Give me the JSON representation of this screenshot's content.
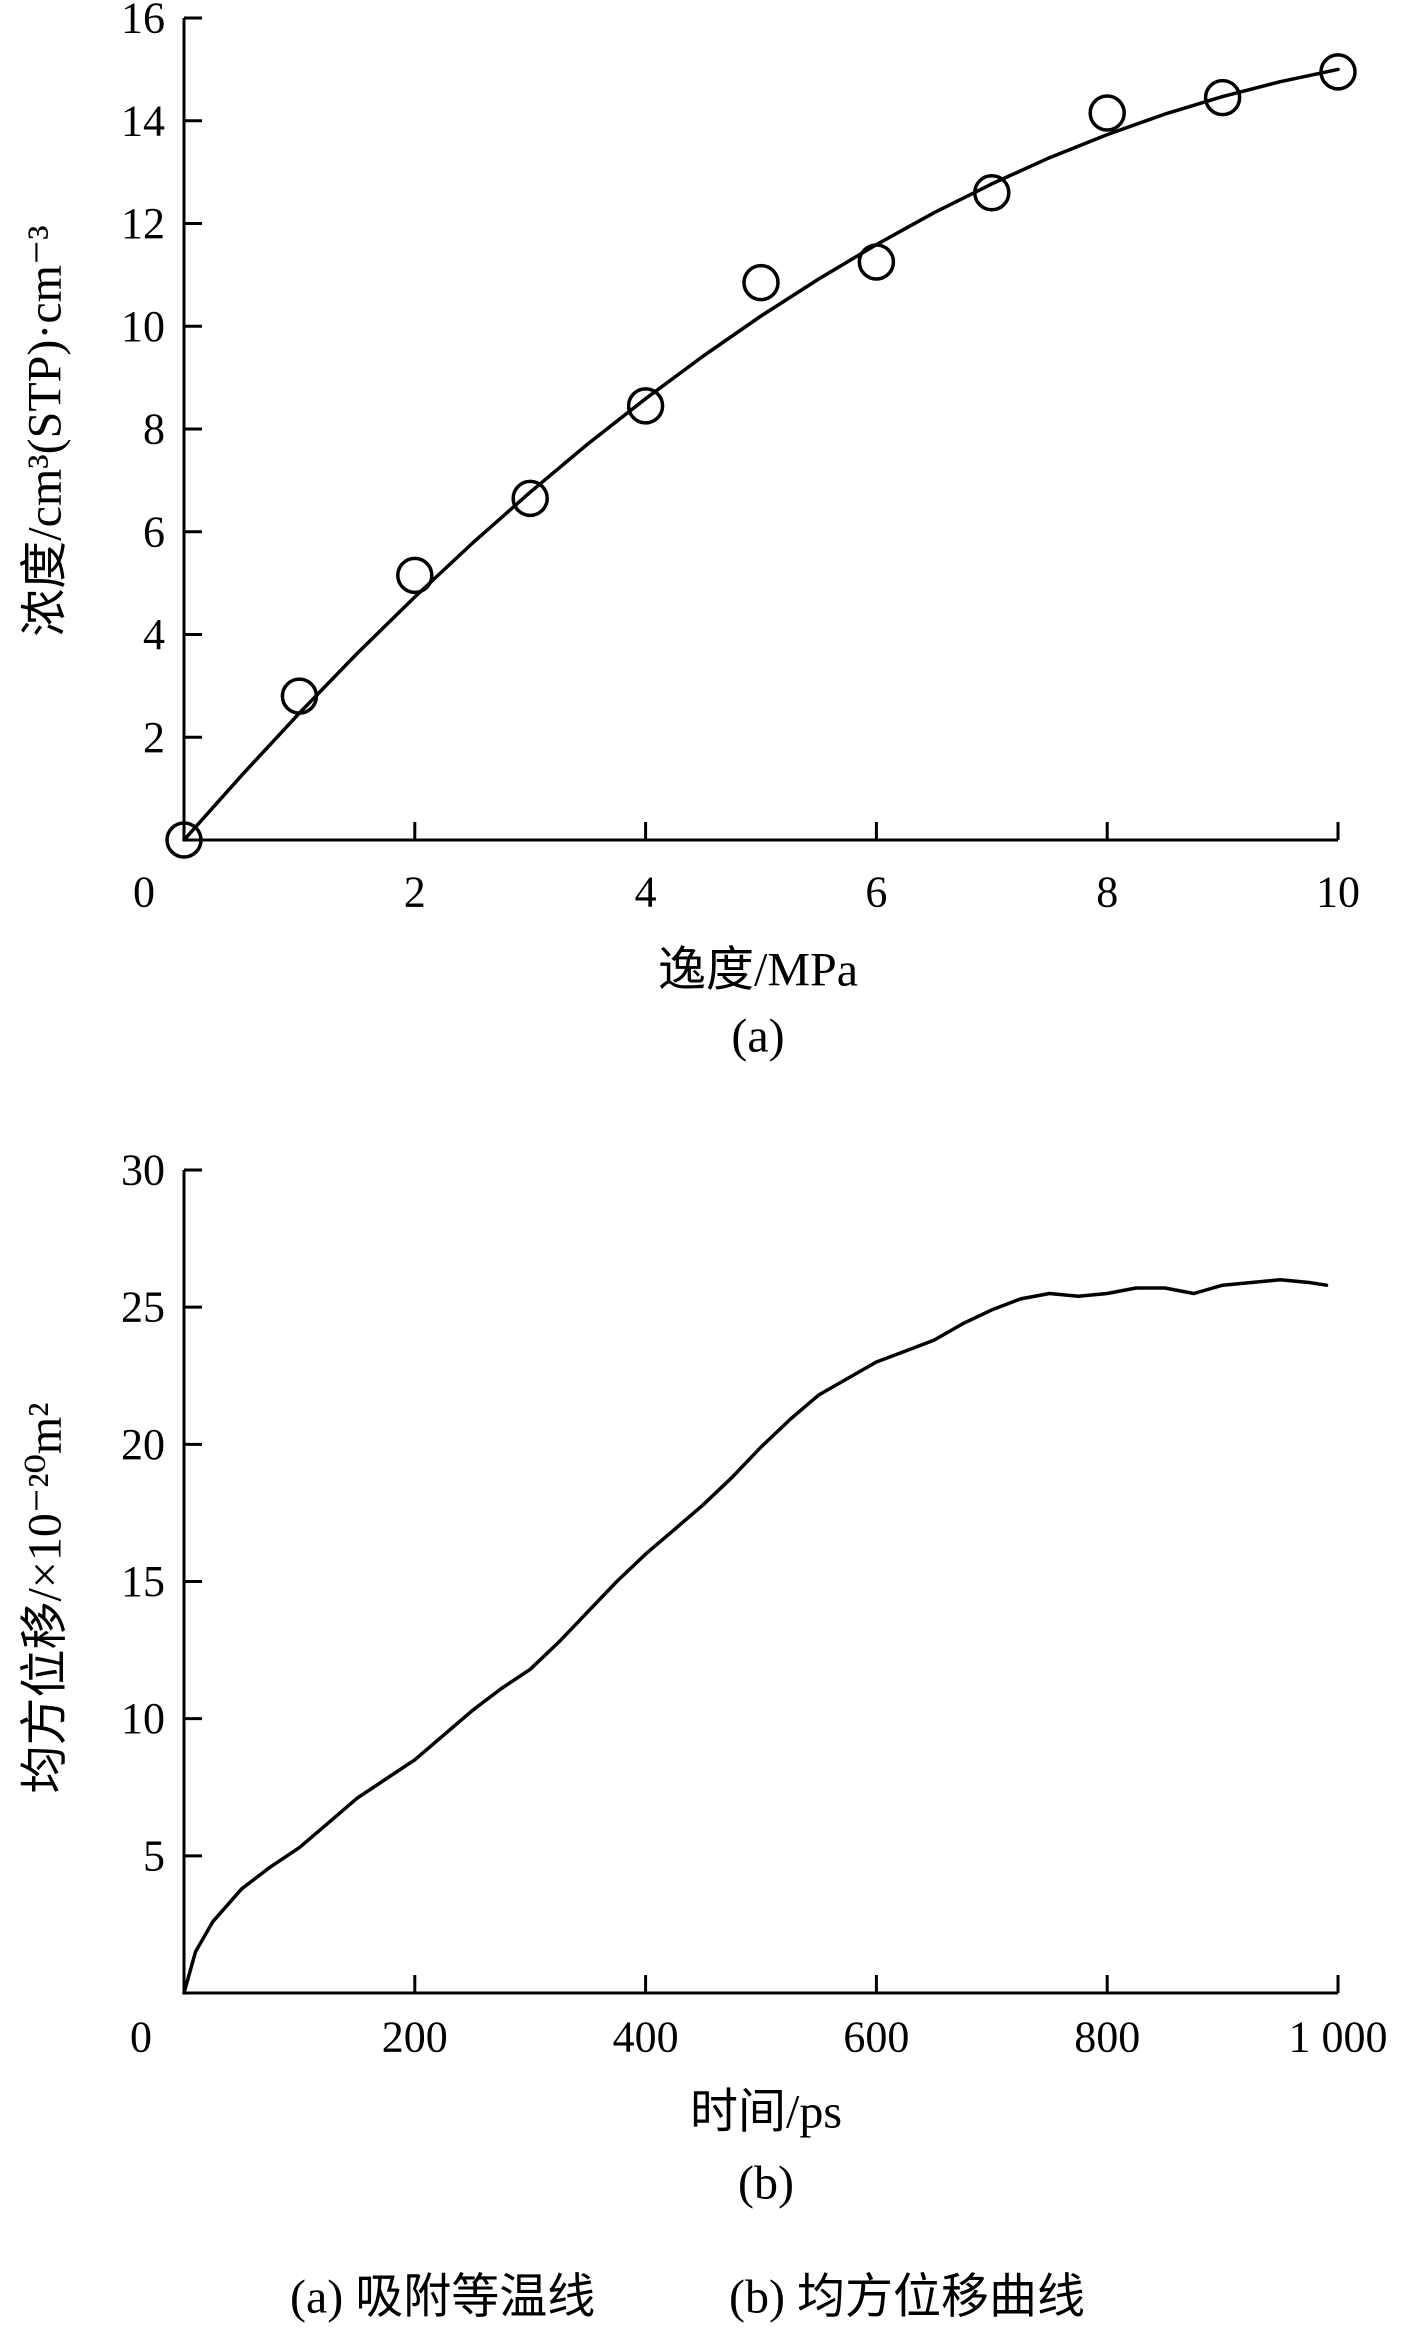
{
  "figure": {
    "caption_a": "(a) 吸附等温线",
    "caption_b": "(b) 均方位移曲线"
  },
  "chart_data": [
    {
      "type": "scatter",
      "panel_label": "(a)",
      "xlabel": "逸度/MPa",
      "ylabel": "浓度/cm³(STP)·cm⁻³",
      "xlim": [
        0,
        10
      ],
      "ylim": [
        0,
        16
      ],
      "origin_label": "0",
      "x_ticks": [
        2,
        4,
        6,
        8,
        10
      ],
      "x_tick_labels": [
        "2",
        "4",
        "6",
        "8",
        "10"
      ],
      "y_ticks": [
        2,
        4,
        6,
        8,
        10,
        12,
        14,
        16
      ],
      "y_tick_labels": [
        "2",
        "4",
        "6",
        "8",
        "10",
        "12",
        "14",
        "16"
      ],
      "grid": false,
      "series": [
        {
          "type": "line",
          "x": [
            0,
            0.5,
            1,
            1.5,
            2,
            2.5,
            3,
            3.5,
            4,
            4.5,
            5,
            5.5,
            6,
            6.5,
            7,
            7.5,
            8,
            8.5,
            9,
            9.5,
            10
          ],
          "y": [
            0,
            1.26,
            2.47,
            3.63,
            4.73,
            5.78,
            6.77,
            7.71,
            8.59,
            9.42,
            10.2,
            10.92,
            11.59,
            12.21,
            12.77,
            13.28,
            13.73,
            14.13,
            14.47,
            14.76,
            15.0
          ]
        },
        {
          "type": "scatter",
          "marker": "open-circle",
          "x": [
            0,
            1,
            2,
            3,
            4,
            5,
            6,
            7,
            8,
            9,
            10
          ],
          "y": [
            0,
            2.8,
            5.15,
            6.65,
            8.45,
            10.85,
            11.25,
            12.6,
            14.15,
            14.45,
            14.95
          ]
        }
      ]
    },
    {
      "type": "line",
      "panel_label": "(b)",
      "xlabel": "时间/ps",
      "ylabel": "均方位移/×10⁻²⁰m²",
      "xlim": [
        0,
        1000
      ],
      "ylim": [
        0,
        30
      ],
      "origin_label": "0",
      "x_ticks": [
        200,
        400,
        600,
        800,
        1000
      ],
      "x_tick_labels": [
        "200",
        "400",
        "600",
        "800",
        "1 000"
      ],
      "y_ticks": [
        5,
        10,
        15,
        20,
        25,
        30
      ],
      "y_tick_labels": [
        "5",
        "10",
        "15",
        "20",
        "25",
        "30"
      ],
      "grid": false,
      "series": [
        {
          "type": "line",
          "x": [
            0,
            10,
            25,
            50,
            75,
            100,
            125,
            150,
            175,
            200,
            225,
            250,
            275,
            300,
            325,
            350,
            375,
            400,
            425,
            450,
            475,
            500,
            525,
            550,
            575,
            600,
            625,
            650,
            675,
            700,
            725,
            750,
            775,
            800,
            825,
            850,
            875,
            900,
            925,
            950,
            975,
            990
          ],
          "y": [
            0,
            1.5,
            2.6,
            3.8,
            4.6,
            5.3,
            6.2,
            7.1,
            7.8,
            8.5,
            9.4,
            10.3,
            11.1,
            11.8,
            12.8,
            13.9,
            15.0,
            16.0,
            16.9,
            17.8,
            18.8,
            19.9,
            20.9,
            21.8,
            22.4,
            23.0,
            23.4,
            23.8,
            24.4,
            24.9,
            25.3,
            25.5,
            25.4,
            25.5,
            25.7,
            25.7,
            25.5,
            25.8,
            25.9,
            26.0,
            25.9,
            25.8
          ]
        }
      ]
    }
  ]
}
